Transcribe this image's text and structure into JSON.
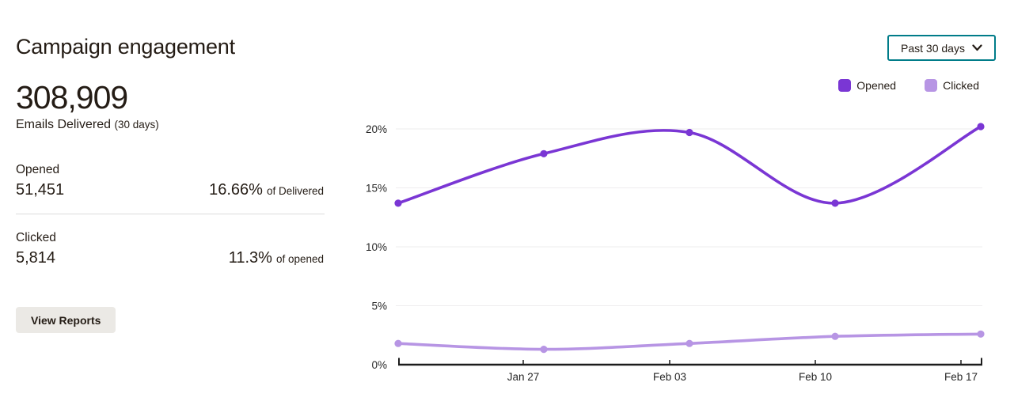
{
  "header": {
    "title": "Campaign engagement"
  },
  "summary": {
    "delivered_value": "308,909",
    "delivered_label": "Emails Delivered",
    "delivered_sublabel": "(30 days)",
    "opened": {
      "label": "Opened",
      "value": "51,451",
      "pct": "16.66%",
      "pct_suffix": "of Delivered"
    },
    "clicked": {
      "label": "Clicked",
      "value": "5,814",
      "pct": "11.3%",
      "pct_suffix": "of opened"
    },
    "view_reports_label": "View Reports"
  },
  "controls": {
    "range_selector": {
      "value": "Past 30 days",
      "chevron_icon": "chevron-down"
    }
  },
  "legend": [
    {
      "label": "Opened",
      "color": "#7a36d4"
    },
    {
      "label": "Clicked",
      "color": "#b795e4"
    }
  ],
  "colors": {
    "accent_teal": "#007c89",
    "opened_purple": "#7a36d4",
    "clicked_purple": "#b795e4",
    "text": "#241c15",
    "grid": "#eeedee",
    "axis": "#1c1c1c",
    "button_bg": "#ebe9e5",
    "divider": "#dcdcdc"
  },
  "chart_data": {
    "type": "line",
    "title": "",
    "xlabel": "",
    "ylabel": "",
    "x_tick_labels": [
      "Jan 27",
      "Feb 03",
      "Feb 10",
      "Feb 17"
    ],
    "y_ticks": {
      "labels": [
        "0%",
        "5%",
        "10%",
        "15%",
        "20%"
      ],
      "values": [
        0,
        5,
        10,
        15,
        20
      ]
    },
    "ylim": [
      0,
      21.5
    ],
    "grid": true,
    "smooth": true,
    "legend_position": "top-right",
    "series": [
      {
        "name": "Opened",
        "color": "#7a36d4",
        "values": [
          13.7,
          17.9,
          19.7,
          13.7,
          20.2
        ]
      },
      {
        "name": "Clicked",
        "color": "#b795e4",
        "values": [
          1.8,
          1.3,
          1.8,
          2.4,
          2.6
        ]
      }
    ]
  }
}
